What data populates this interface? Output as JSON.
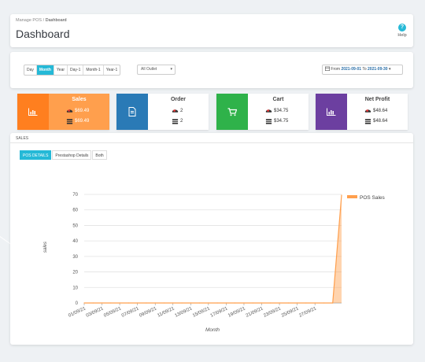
{
  "breadcrumb": {
    "parent": "Manage POS",
    "separator": "/",
    "current": "Dashboard"
  },
  "header": {
    "title": "Dashboard",
    "help_icon": "?",
    "help_label": "Help"
  },
  "filters": {
    "periods": [
      {
        "label": "Day",
        "active": false
      },
      {
        "label": "Month",
        "active": true
      },
      {
        "label": "Year",
        "active": false
      },
      {
        "label": "Day-1",
        "active": false
      },
      {
        "label": "Month-1",
        "active": false
      },
      {
        "label": "Year-1",
        "active": false
      }
    ],
    "outlet": {
      "selected": "All Outlet",
      "chevron": "▾"
    },
    "date_range": {
      "prefix": "From",
      "from": "2021-09-01",
      "connector": "To",
      "to": "2021-09-30",
      "chevron": "▾"
    }
  },
  "kpis": [
    {
      "title": "Sales",
      "values": [
        "$69.49",
        "$69.49"
      ],
      "color": "#ff7f1f",
      "icon": "bar-chart-icon"
    },
    {
      "title": "Order",
      "values": [
        "2",
        "2"
      ],
      "color": "#2a7ab6",
      "icon": "document-icon"
    },
    {
      "title": "Cart",
      "values": [
        "$34.75",
        "$34.75"
      ],
      "color": "#2fb24a",
      "icon": "cart-icon"
    },
    {
      "title": "Net Profit",
      "values": [
        "$48.64",
        "$48.64"
      ],
      "color": "#6c3fa0",
      "icon": "bar-chart-icon"
    }
  ],
  "sales_section": {
    "title": "SALES",
    "tabs": [
      {
        "label": "POS DETAILS",
        "active": true
      },
      {
        "label": "Prestashop Details",
        "active": false
      },
      {
        "label": "Both",
        "active": false
      }
    ]
  },
  "chart_data": {
    "type": "area",
    "title": "",
    "xlabel": "Month",
    "ylabel": "sales",
    "ylim": [
      0,
      70
    ],
    "yticks": [
      0,
      10,
      20,
      30,
      40,
      50,
      60,
      70
    ],
    "grid": true,
    "legend_position": "top-right",
    "x": [
      "01/09/21",
      "02/09/21",
      "03/09/21",
      "04/09/21",
      "05/09/21",
      "06/09/21",
      "07/09/21",
      "08/09/21",
      "09/09/21",
      "10/09/21",
      "11/09/21",
      "12/09/21",
      "13/09/21",
      "14/09/21",
      "15/09/21",
      "16/09/21",
      "17/09/21",
      "18/09/21",
      "19/09/21",
      "20/09/21",
      "21/09/21",
      "22/09/21",
      "23/09/21",
      "24/09/21",
      "25/09/21",
      "26/09/21",
      "27/09/21",
      "28/09/21",
      "29/09/21",
      "30/09/21"
    ],
    "x_tick_labels": [
      "01/09/21",
      "03/09/21",
      "05/09/21",
      "07/09/21",
      "09/09/21",
      "11/09/21",
      "13/09/21",
      "15/09/21",
      "17/09/21",
      "19/09/21",
      "21/09/21",
      "23/09/21",
      "25/09/21",
      "27/09/21"
    ],
    "series": [
      {
        "name": "POS Sales",
        "color": "#ff9f4d",
        "values": [
          0,
          0,
          0,
          0,
          0,
          0,
          0,
          0,
          0,
          0,
          0,
          0,
          0,
          0,
          0,
          0,
          0,
          0,
          0,
          0,
          0,
          0,
          0,
          0,
          0,
          0,
          0,
          0,
          0,
          69.49
        ]
      }
    ]
  }
}
